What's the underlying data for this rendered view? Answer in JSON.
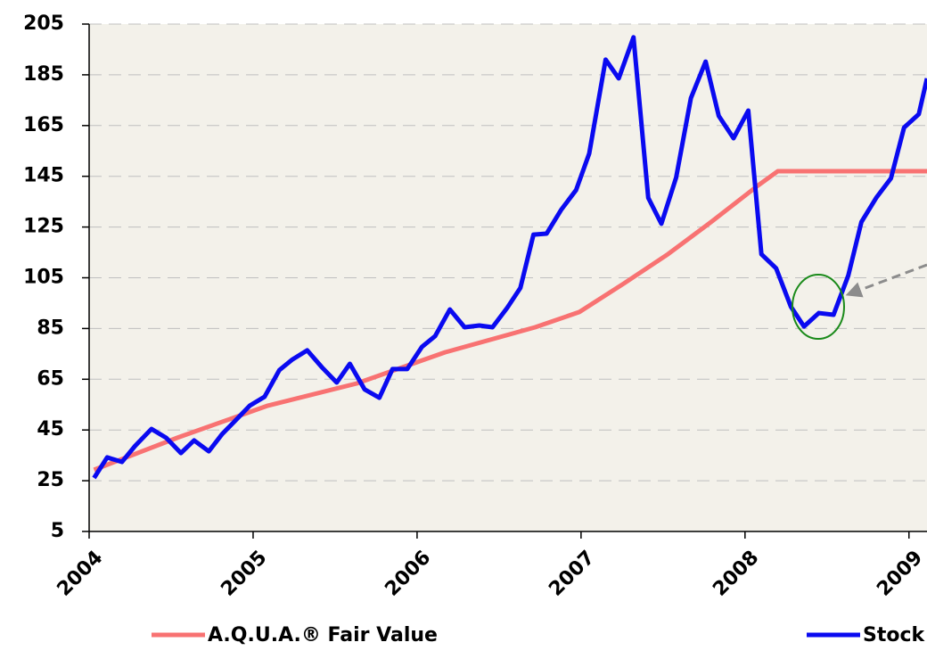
{
  "chart_data": {
    "type": "line",
    "xlim": [
      2004,
      2009.11
    ],
    "xticks": [
      2004,
      2005,
      2006,
      2007,
      2008,
      2009
    ],
    "ylim": [
      5,
      205
    ],
    "yticks": [
      5,
      25,
      45,
      65,
      85,
      105,
      125,
      145,
      165,
      185,
      205
    ],
    "grid": true,
    "legend": "bottom",
    "series": [
      {
        "name": "A.Q.U.A.® Fair Value",
        "color": "#f87272",
        "x": [
          2004.03,
          2004.54,
          2005.09,
          2005.63,
          2006.17,
          2006.72,
          2006.99,
          2007.26,
          2007.53,
          2007.8,
          2008.08,
          2008.2,
          2009.11
        ],
        "values": [
          29.3,
          42,
          54.6,
          63.3,
          75.6,
          85.5,
          91.5,
          102.7,
          114.3,
          127.3,
          141.4,
          147,
          147
        ]
      },
      {
        "name": "Stock Price",
        "color": "#0a0af0",
        "x": [
          2004.03,
          2004.11,
          2004.2,
          2004.28,
          2004.38,
          2004.47,
          2004.56,
          2004.64,
          2004.73,
          2004.81,
          2004.89,
          2004.98,
          2005.07,
          2005.16,
          2005.24,
          2005.33,
          2005.42,
          2005.51,
          2005.59,
          2005.68,
          2005.77,
          2005.85,
          2005.94,
          2006.03,
          2006.11,
          2006.2,
          2006.29,
          2006.38,
          2006.46,
          2006.55,
          2006.63,
          2006.71,
          2006.79,
          2006.88,
          2006.97,
          2007.05,
          2007.15,
          2007.23,
          2007.32,
          2007.41,
          2007.49,
          2007.58,
          2007.67,
          2007.76,
          2007.84,
          2007.93,
          2008.02,
          2008.1,
          2008.19,
          2008.28,
          2008.36,
          2008.45,
          2008.54,
          2008.63,
          2008.71,
          2008.8,
          2008.89,
          2008.97,
          2009.06,
          2009.11
        ],
        "values": [
          26.1,
          34.2,
          32.4,
          38.7,
          45.4,
          41.9,
          35.9,
          40.9,
          36.6,
          43.3,
          48.6,
          54.6,
          58.1,
          68.6,
          72.8,
          76.4,
          69.7,
          63.7,
          71.1,
          61,
          57.7,
          69,
          69,
          77.8,
          82,
          92.5,
          85.5,
          86.2,
          85.5,
          93.2,
          101,
          122,
          122.4,
          131.9,
          139.6,
          154,
          191,
          183.6,
          199.8,
          136.5,
          126.3,
          144.5,
          175.8,
          190.2,
          168.8,
          160,
          170.9,
          114.3,
          108.7,
          93.6,
          85.8,
          91.1,
          90.4,
          105.9,
          127,
          136.5,
          144.2,
          164.2,
          169.5,
          183.6
        ]
      }
    ]
  }
}
